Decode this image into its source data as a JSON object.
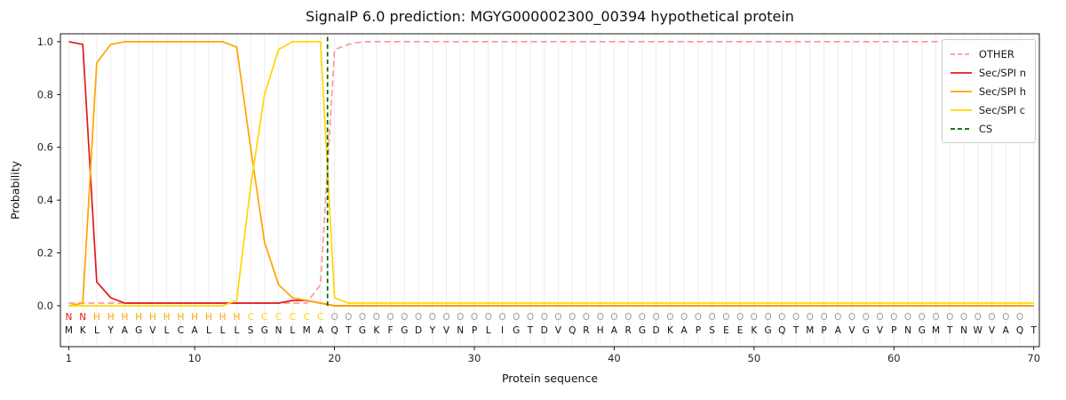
{
  "chart_data": {
    "type": "line",
    "title": "SignalP 6.0 prediction: MGYG000002300_00394 hypothetical protein",
    "xlabel": "Protein sequence",
    "ylabel": "Probability",
    "x_ticks": [
      1,
      10,
      20,
      30,
      40,
      50,
      60,
      70
    ],
    "y_ticks": [
      0.0,
      0.2,
      0.4,
      0.6,
      0.8,
      1.0
    ],
    "xlim": [
      0.4,
      70.4
    ],
    "ylim": [
      -0.155,
      1.03
    ],
    "grid": "vertical-light",
    "grid_color": "#ededed",
    "sequence": "MKLYAGVLCALLLSGNLMAQTGKFGDYVNPLIGTDVQRHARGDKAPSEEKGQTMPAVGVPNGMTNWVAQT",
    "regions": "NNHHHHHHHHHHHCCCCCCOOOOOOOOOOOOOOOOOOOOOOOOOOOOOOOOOOOOOOOOOOOOOOOOOO",
    "region_colors": {
      "N": "#e31a1c",
      "H": "#ffa500",
      "C": "#ffd700",
      "O": "#a0a0a0"
    },
    "sequence_color": "#111111",
    "cs_position": 19.5,
    "cs_color": "#006400",
    "series": [
      {
        "name": "OTHER",
        "color": "#fb9a99",
        "dash": "dashed",
        "values": [
          0.01,
          0.01,
          0.01,
          0.01,
          0.01,
          0.01,
          0.01,
          0.01,
          0.01,
          0.01,
          0.01,
          0.01,
          0.01,
          0.01,
          0.01,
          0.01,
          0.01,
          0.01,
          0.08,
          0.97,
          0.99,
          1.0,
          1.0,
          1.0,
          1.0,
          1.0,
          1.0,
          1.0,
          1.0,
          1.0,
          1.0,
          1.0,
          1.0,
          1.0,
          1.0,
          1.0,
          1.0,
          1.0,
          1.0,
          1.0,
          1.0,
          1.0,
          1.0,
          1.0,
          1.0,
          1.0,
          1.0,
          1.0,
          1.0,
          1.0,
          1.0,
          1.0,
          1.0,
          1.0,
          1.0,
          1.0,
          1.0,
          1.0,
          1.0,
          1.0,
          1.0,
          1.0,
          1.0,
          1.0,
          1.0,
          1.0,
          1.0,
          1.0,
          1.0,
          1.0
        ]
      },
      {
        "name": "Sec/SPI n",
        "color": "#e31a1c",
        "dash": "solid",
        "values": [
          1.0,
          0.99,
          0.09,
          0.03,
          0.01,
          0.01,
          0.01,
          0.01,
          0.01,
          0.01,
          0.01,
          0.01,
          0.01,
          0.01,
          0.01,
          0.01,
          0.02,
          0.02,
          0.01,
          0.0,
          0.0,
          0.0,
          0.0,
          0.0,
          0.0,
          0.0,
          0.0,
          0.0,
          0.0,
          0.0,
          0.0,
          0.0,
          0.0,
          0.0,
          0.0,
          0.0,
          0.0,
          0.0,
          0.0,
          0.0,
          0.0,
          0.0,
          0.0,
          0.0,
          0.0,
          0.0,
          0.0,
          0.0,
          0.0,
          0.0,
          0.0,
          0.0,
          0.0,
          0.0,
          0.0,
          0.0,
          0.0,
          0.0,
          0.0,
          0.0,
          0.0,
          0.0,
          0.0,
          0.0,
          0.0,
          0.0,
          0.0,
          0.0,
          0.0,
          0.0
        ]
      },
      {
        "name": "Sec/SPI h",
        "color": "#ffa500",
        "dash": "solid",
        "values": [
          0.0,
          0.01,
          0.92,
          0.99,
          1.0,
          1.0,
          1.0,
          1.0,
          1.0,
          1.0,
          1.0,
          1.0,
          0.98,
          0.6,
          0.24,
          0.08,
          0.03,
          0.02,
          0.01,
          0.0,
          0.0,
          0.0,
          0.0,
          0.0,
          0.0,
          0.0,
          0.0,
          0.0,
          0.0,
          0.0,
          0.0,
          0.0,
          0.0,
          0.0,
          0.0,
          0.0,
          0.0,
          0.0,
          0.0,
          0.0,
          0.0,
          0.0,
          0.0,
          0.0,
          0.0,
          0.0,
          0.0,
          0.0,
          0.0,
          0.0,
          0.0,
          0.0,
          0.0,
          0.0,
          0.0,
          0.0,
          0.0,
          0.0,
          0.0,
          0.0,
          0.0,
          0.0,
          0.0,
          0.0,
          0.0,
          0.0,
          0.0,
          0.0,
          0.0,
          0.0
        ]
      },
      {
        "name": "Sec/SPI c",
        "color": "#ffd700",
        "dash": "solid",
        "values": [
          0.0,
          0.0,
          0.0,
          0.0,
          0.0,
          0.0,
          0.0,
          0.0,
          0.0,
          0.0,
          0.0,
          0.0,
          0.02,
          0.45,
          0.8,
          0.97,
          1.0,
          1.0,
          1.0,
          0.03,
          0.01,
          0.01,
          0.01,
          0.01,
          0.01,
          0.01,
          0.01,
          0.01,
          0.01,
          0.01,
          0.01,
          0.01,
          0.01,
          0.01,
          0.01,
          0.01,
          0.01,
          0.01,
          0.01,
          0.01,
          0.01,
          0.01,
          0.01,
          0.01,
          0.01,
          0.01,
          0.01,
          0.01,
          0.01,
          0.01,
          0.01,
          0.01,
          0.01,
          0.01,
          0.01,
          0.01,
          0.01,
          0.01,
          0.01,
          0.01,
          0.01,
          0.01,
          0.01,
          0.01,
          0.01,
          0.01,
          0.01,
          0.01,
          0.01,
          0.01
        ]
      }
    ],
    "legend": [
      {
        "label": "OTHER",
        "color": "#fb9a99",
        "dasharray": "5,3"
      },
      {
        "label": "Sec/SPI n",
        "color": "#e31a1c",
        "dasharray": "none"
      },
      {
        "label": "Sec/SPI h",
        "color": "#ffa500",
        "dasharray": "none"
      },
      {
        "label": "Sec/SPI c",
        "color": "#ffd700",
        "dasharray": "none"
      },
      {
        "label": "CS",
        "color": "#006400",
        "dasharray": "5,3"
      }
    ],
    "legend_position": "upper-right"
  }
}
